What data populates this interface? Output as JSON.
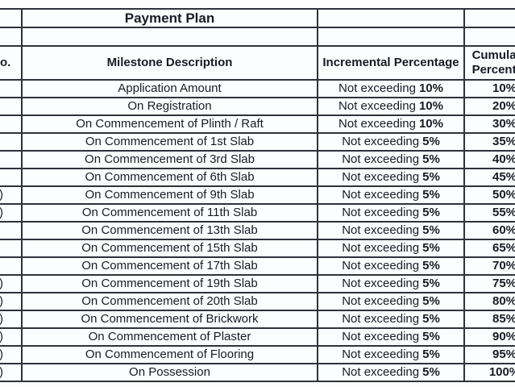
{
  "table": {
    "title": "Payment Plan",
    "columns": {
      "serial_header_fragment": "o.",
      "milestone": "Milestone Description",
      "incremental": "Incremental Percentage",
      "cumulative": "Cumulative Percentage"
    },
    "incremental_prefix": "Not exceeding",
    "rows": [
      {
        "no": "",
        "milestone": "Application Amount",
        "incremental_value": "10%",
        "cumulative": "10%"
      },
      {
        "no": "",
        "milestone": "On Registration",
        "incremental_value": "10%",
        "cumulative": "20%"
      },
      {
        "no": "",
        "milestone": "On Commencement of Plinth / Raft",
        "incremental_value": "10%",
        "cumulative": "30%"
      },
      {
        "no": "",
        "milestone": "On Commencement of 1st Slab",
        "incremental_value": "5%",
        "cumulative": "35%"
      },
      {
        "no": "",
        "milestone": "On Commencement of 3rd Slab",
        "incremental_value": "5%",
        "cumulative": "40%"
      },
      {
        "no": "",
        "milestone": "On Commencement of 6th Slab",
        "incremental_value": "5%",
        "cumulative": "45%"
      },
      {
        "no": ")",
        "milestone": "On Commencement of 9th Slab",
        "incremental_value": "5%",
        "cumulative": "50%"
      },
      {
        "no": ")",
        "milestone": "On Commencement of 11th Slab",
        "incremental_value": "5%",
        "cumulative": "55%"
      },
      {
        "no": "",
        "milestone": "On Commencement of 13th Slab",
        "incremental_value": "5%",
        "cumulative": "60%"
      },
      {
        "no": "",
        "milestone": "On Commencement of 15th Slab",
        "incremental_value": "5%",
        "cumulative": "65%"
      },
      {
        "no": "",
        "milestone": "On Commencement of 17th Slab",
        "incremental_value": "5%",
        "cumulative": "70%"
      },
      {
        "no": ")",
        "milestone": "On Commencement of 19th Slab",
        "incremental_value": "5%",
        "cumulative": "75%"
      },
      {
        "no": ")",
        "milestone": "On Commencement of 20th Slab",
        "incremental_value": "5%",
        "cumulative": "80%"
      },
      {
        "no": ")",
        "milestone": "On Commencement of Brickwork",
        "incremental_value": "5%",
        "cumulative": "85%"
      },
      {
        "no": ")",
        "milestone": "On Commencement of Plaster",
        "incremental_value": "5%",
        "cumulative": "90%"
      },
      {
        "no": ")",
        "milestone": "On Commencement of Flooring",
        "incremental_value": "5%",
        "cumulative": "95%"
      },
      {
        "no": ")",
        "milestone": "On Possession",
        "incremental_value": "5%",
        "cumulative": "100%"
      }
    ]
  }
}
